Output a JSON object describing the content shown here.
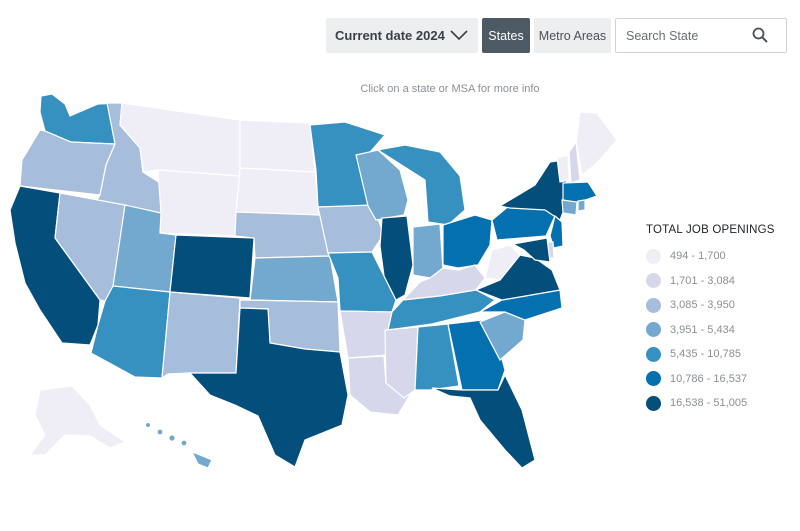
{
  "toolbar": {
    "date_label": "Current date 2024",
    "tab_states": "States",
    "tab_metro": "Metro Areas",
    "search_placeholder": "Search State"
  },
  "hint": "Click on a state or MSA for more info",
  "legend": {
    "title": "TOTAL JOB OPENINGS",
    "items": [
      {
        "label": "494 - 1,700",
        "color": "#efeef6"
      },
      {
        "label": "1,701 - 3,084",
        "color": "#d6d7ea"
      },
      {
        "label": "3,085 - 3,950",
        "color": "#a6bddb"
      },
      {
        "label": "3,951 - 5,434",
        "color": "#74a9cf"
      },
      {
        "label": "5,435 - 10,785",
        "color": "#3690c0"
      },
      {
        "label": "10,786 - 16,537",
        "color": "#0570b0"
      },
      {
        "label": "16,538 - 51,005",
        "color": "#034e7b"
      }
    ]
  },
  "states": [
    {
      "id": "WA",
      "bin": 4
    },
    {
      "id": "OR",
      "bin": 2
    },
    {
      "id": "CA",
      "bin": 6
    },
    {
      "id": "ID",
      "bin": 2
    },
    {
      "id": "NV",
      "bin": 2
    },
    {
      "id": "MT",
      "bin": 0
    },
    {
      "id": "WY",
      "bin": 0
    },
    {
      "id": "UT",
      "bin": 3
    },
    {
      "id": "AZ",
      "bin": 4
    },
    {
      "id": "CO",
      "bin": 6
    },
    {
      "id": "NM",
      "bin": 2
    },
    {
      "id": "ND",
      "bin": 0
    },
    {
      "id": "SD",
      "bin": 0
    },
    {
      "id": "NE",
      "bin": 2
    },
    {
      "id": "KS",
      "bin": 3
    },
    {
      "id": "OK",
      "bin": 2
    },
    {
      "id": "TX",
      "bin": 6
    },
    {
      "id": "MN",
      "bin": 4
    },
    {
      "id": "IA",
      "bin": 2
    },
    {
      "id": "MO",
      "bin": 4
    },
    {
      "id": "AR",
      "bin": 1
    },
    {
      "id": "LA",
      "bin": 1
    },
    {
      "id": "WI",
      "bin": 3
    },
    {
      "id": "IL",
      "bin": 6
    },
    {
      "id": "MI",
      "bin": 4
    },
    {
      "id": "IN",
      "bin": 3
    },
    {
      "id": "OH",
      "bin": 5
    },
    {
      "id": "KY",
      "bin": 1
    },
    {
      "id": "TN",
      "bin": 4
    },
    {
      "id": "MS",
      "bin": 1
    },
    {
      "id": "AL",
      "bin": 4
    },
    {
      "id": "GA",
      "bin": 5
    },
    {
      "id": "FL",
      "bin": 6
    },
    {
      "id": "SC",
      "bin": 3
    },
    {
      "id": "NC",
      "bin": 5
    },
    {
      "id": "VA",
      "bin": 6
    },
    {
      "id": "WV",
      "bin": 0
    },
    {
      "id": "PA",
      "bin": 5
    },
    {
      "id": "NY",
      "bin": 6
    },
    {
      "id": "VT",
      "bin": 0
    },
    {
      "id": "NH",
      "bin": 1
    },
    {
      "id": "ME",
      "bin": 0
    },
    {
      "id": "MA",
      "bin": 5
    },
    {
      "id": "CT",
      "bin": 3
    },
    {
      "id": "RI",
      "bin": 3
    },
    {
      "id": "NJ",
      "bin": 5
    },
    {
      "id": "DE",
      "bin": 1
    },
    {
      "id": "MD",
      "bin": 6
    },
    {
      "id": "AK",
      "bin": 0
    },
    {
      "id": "HI",
      "bin": 3
    }
  ]
}
